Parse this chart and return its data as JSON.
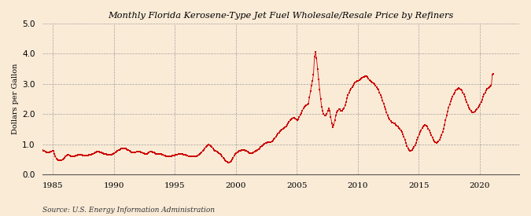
{
  "title": "Monthly Florida Kerosene-Type Jet Fuel Wholesale/Resale Price by Refiners",
  "ylabel": "Dollars per Gallon",
  "source": "Source: U.S. Energy Information Administration",
  "background_color": "#faebd7",
  "line_color": "#cc0000",
  "ylim": [
    0.0,
    5.0
  ],
  "yticks": [
    0.0,
    1.0,
    2.0,
    3.0,
    4.0,
    5.0
  ],
  "xtick_years": [
    1985,
    1990,
    1995,
    2000,
    2005,
    2010,
    2015,
    2020
  ],
  "start_year": 1984,
  "start_month": 1,
  "prices": [
    0.84,
    0.82,
    0.79,
    0.77,
    0.76,
    0.74,
    0.72,
    0.73,
    0.74,
    0.75,
    0.76,
    0.77,
    0.78,
    0.68,
    0.59,
    0.52,
    0.49,
    0.47,
    0.46,
    0.46,
    0.47,
    0.49,
    0.51,
    0.55,
    0.59,
    0.62,
    0.64,
    0.64,
    0.62,
    0.6,
    0.59,
    0.59,
    0.6,
    0.61,
    0.62,
    0.63,
    0.64,
    0.65,
    0.66,
    0.65,
    0.64,
    0.63,
    0.62,
    0.62,
    0.62,
    0.62,
    0.63,
    0.64,
    0.65,
    0.66,
    0.67,
    0.68,
    0.7,
    0.72,
    0.74,
    0.76,
    0.76,
    0.75,
    0.74,
    0.73,
    0.71,
    0.7,
    0.69,
    0.68,
    0.67,
    0.66,
    0.65,
    0.65,
    0.65,
    0.66,
    0.67,
    0.68,
    0.7,
    0.72,
    0.75,
    0.77,
    0.8,
    0.82,
    0.84,
    0.85,
    0.86,
    0.87,
    0.86,
    0.85,
    0.84,
    0.82,
    0.8,
    0.78,
    0.76,
    0.74,
    0.73,
    0.73,
    0.73,
    0.74,
    0.75,
    0.76,
    0.75,
    0.75,
    0.74,
    0.73,
    0.71,
    0.7,
    0.69,
    0.68,
    0.68,
    0.7,
    0.73,
    0.75,
    0.76,
    0.76,
    0.74,
    0.72,
    0.7,
    0.68,
    0.67,
    0.67,
    0.67,
    0.67,
    0.67,
    0.66,
    0.65,
    0.63,
    0.62,
    0.61,
    0.6,
    0.6,
    0.6,
    0.6,
    0.61,
    0.62,
    0.63,
    0.63,
    0.64,
    0.65,
    0.66,
    0.67,
    0.68,
    0.68,
    0.68,
    0.67,
    0.66,
    0.65,
    0.64,
    0.63,
    0.62,
    0.61,
    0.6,
    0.59,
    0.59,
    0.59,
    0.59,
    0.59,
    0.6,
    0.61,
    0.63,
    0.65,
    0.67,
    0.7,
    0.74,
    0.78,
    0.82,
    0.86,
    0.9,
    0.94,
    0.97,
    0.98,
    0.97,
    0.94,
    0.9,
    0.86,
    0.82,
    0.79,
    0.77,
    0.75,
    0.73,
    0.71,
    0.68,
    0.64,
    0.6,
    0.56,
    0.52,
    0.48,
    0.44,
    0.41,
    0.4,
    0.4,
    0.42,
    0.45,
    0.5,
    0.56,
    0.62,
    0.67,
    0.71,
    0.74,
    0.76,
    0.78,
    0.79,
    0.8,
    0.81,
    0.81,
    0.8,
    0.79,
    0.77,
    0.75,
    0.73,
    0.71,
    0.7,
    0.7,
    0.71,
    0.73,
    0.75,
    0.77,
    0.79,
    0.82,
    0.84,
    0.87,
    0.9,
    0.93,
    0.96,
    0.99,
    1.02,
    1.04,
    1.05,
    1.06,
    1.06,
    1.07,
    1.08,
    1.09,
    1.12,
    1.16,
    1.2,
    1.25,
    1.3,
    1.35,
    1.39,
    1.43,
    1.46,
    1.49,
    1.51,
    1.53,
    1.56,
    1.6,
    1.64,
    1.69,
    1.74,
    1.79,
    1.83,
    1.86,
    1.87,
    1.87,
    1.85,
    1.82,
    1.8,
    1.83,
    1.9,
    1.97,
    2.04,
    2.12,
    2.18,
    2.23,
    2.27,
    2.3,
    2.32,
    2.35,
    2.55,
    2.75,
    2.95,
    3.1,
    3.3,
    3.9,
    4.05,
    3.85,
    3.5,
    3.15,
    2.8,
    2.5,
    2.25,
    2.1,
    2.0,
    1.95,
    1.95,
    2.0,
    2.1,
    2.2,
    2.1,
    1.9,
    1.7,
    1.55,
    1.65,
    1.8,
    1.95,
    2.05,
    2.1,
    2.15,
    2.15,
    2.1,
    2.1,
    2.15,
    2.2,
    2.28,
    2.4,
    2.52,
    2.64,
    2.72,
    2.78,
    2.85,
    2.9,
    2.95,
    3.0,
    3.05,
    3.08,
    3.1,
    3.1,
    3.12,
    3.14,
    3.18,
    3.2,
    3.22,
    3.24,
    3.26,
    3.25,
    3.22,
    3.18,
    3.12,
    3.1,
    3.08,
    3.05,
    3.02,
    3.0,
    2.95,
    2.9,
    2.85,
    2.8,
    2.72,
    2.64,
    2.55,
    2.45,
    2.35,
    2.25,
    2.15,
    2.05,
    1.95,
    1.88,
    1.82,
    1.77,
    1.73,
    1.71,
    1.7,
    1.68,
    1.65,
    1.62,
    1.58,
    1.54,
    1.5,
    1.45,
    1.4,
    1.33,
    1.25,
    1.15,
    1.05,
    0.95,
    0.87,
    0.8,
    0.77,
    0.78,
    0.8,
    0.85,
    0.9,
    0.97,
    1.05,
    1.14,
    1.23,
    1.32,
    1.4,
    1.47,
    1.53,
    1.58,
    1.62,
    1.64,
    1.62,
    1.58,
    1.52,
    1.45,
    1.37,
    1.3,
    1.22,
    1.15,
    1.1,
    1.07,
    1.05,
    1.06,
    1.1,
    1.15,
    1.22,
    1.3,
    1.4,
    1.52,
    1.65,
    1.79,
    1.94,
    2.08,
    2.21,
    2.32,
    2.42,
    2.51,
    2.59,
    2.66,
    2.72,
    2.78,
    2.82,
    2.85,
    2.86,
    2.85,
    2.82,
    2.78,
    2.72,
    2.65,
    2.57,
    2.48,
    2.39,
    2.3,
    2.22,
    2.15,
    2.1,
    2.07,
    2.06,
    2.07,
    2.09,
    2.13,
    2.17,
    2.22,
    2.27,
    2.33,
    2.4,
    2.48,
    2.57,
    2.65,
    2.72,
    2.78,
    2.83,
    2.87,
    2.9,
    2.92,
    2.93,
    3.3,
    3.32
  ]
}
